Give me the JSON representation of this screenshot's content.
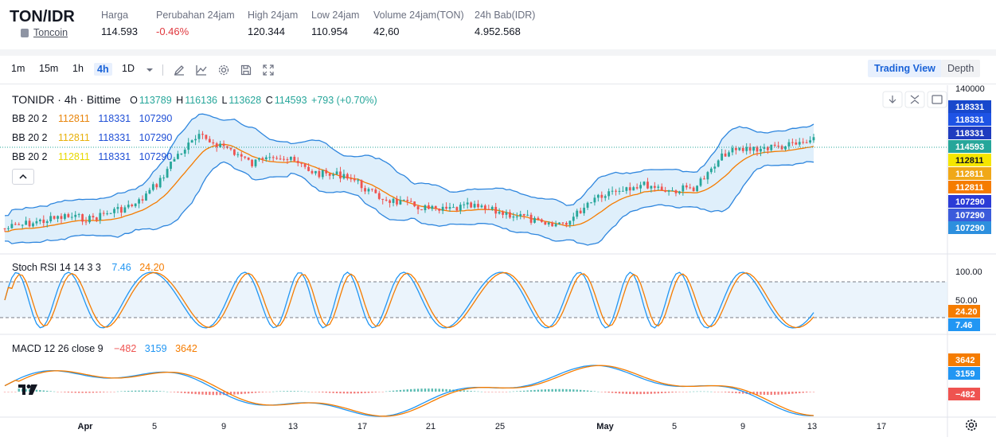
{
  "header": {
    "pair": "TON/IDR",
    "coin_name": "Toncoin",
    "stats": [
      {
        "label": "Harga",
        "value": "114.593",
        "negative": false
      },
      {
        "label": "Perubahan 24jam",
        "value": "-0.46%",
        "negative": true
      },
      {
        "label": "High 24jam",
        "value": "120.344",
        "negative": false
      },
      {
        "label": "Low 24jam",
        "value": "110.954",
        "negative": false
      },
      {
        "label": "Volume 24jam(TON)",
        "value": "42,60",
        "negative": false
      },
      {
        "label": "24h Bab(IDR)",
        "value": "4.952.568",
        "negative": false
      }
    ]
  },
  "toolbar": {
    "timeframes": [
      "1m",
      "15m",
      "1h",
      "4h",
      "1D"
    ],
    "active_timeframe": "4h",
    "icons": [
      "chevron-down-icon",
      "pencil-icon",
      "indicator-icon",
      "gear-icon",
      "save-icon",
      "fullscreen-icon"
    ],
    "view_trading": "Trading View",
    "view_depth": "Depth"
  },
  "chart": {
    "title": "TONIDR · 4h · Bittime",
    "ohlc": {
      "o_label": "O",
      "o": "113789",
      "h_label": "H",
      "h": "116136",
      "l_label": "L",
      "l": "113628",
      "c_label": "C",
      "c": "114593",
      "change": "+793 (+0.70%)"
    },
    "bb_legends": [
      {
        "name": "BB 20 2",
        "basis": "112811",
        "upper": "118331",
        "lower": "107290",
        "basis_color": "#e8850c"
      },
      {
        "name": "BB 20 2",
        "basis": "112811",
        "upper": "118331",
        "lower": "107290",
        "basis_color": "#e8b10c"
      },
      {
        "name": "BB 20 2",
        "basis": "112811",
        "upper": "118331",
        "lower": "107290",
        "basis_color": "#f5e000"
      }
    ],
    "price_axis": {
      "top_tick": "140000",
      "labels": [
        {
          "text": "118331",
          "color": "#1848cc"
        },
        {
          "text": "118331",
          "color": "#1e53e5"
        },
        {
          "text": "118331",
          "color": "#1f3cbf"
        },
        {
          "text": "114593",
          "color": "#26a69a"
        },
        {
          "text": "112811",
          "color": "#f5e600"
        },
        {
          "text": "112811",
          "color": "#f0a818"
        },
        {
          "text": "112811",
          "color": "#f57c00"
        },
        {
          "text": "107290",
          "color": "#2a3bd6"
        },
        {
          "text": "107290",
          "color": "#3b5bdb"
        },
        {
          "text": "107290",
          "color": "#2d8fde"
        }
      ]
    },
    "stoch": {
      "name": "Stoch RSI 14 14 3 3",
      "k": "7.46",
      "d": "24.20",
      "axis_top": "100.00",
      "axis_mid": "50.00",
      "axis_bottom": "0.00",
      "k_color": "#2196f3",
      "d_color": "#f57c00"
    },
    "macd": {
      "name": "MACD 12 26 close 9",
      "hist": "−482",
      "macd": "3159",
      "signal": "3642",
      "hist_color": "#ef5350",
      "macd_color": "#2196f3",
      "signal_color": "#f57c00"
    },
    "time_axis": [
      "Apr",
      "5",
      "9",
      "13",
      "17",
      "21",
      "25",
      "May",
      "5",
      "9",
      "13",
      "17"
    ],
    "colors": {
      "up": "#26a69a",
      "down": "#ef5350",
      "band_fill": "#d9ecfa",
      "band_line": "#2e86de",
      "basis": "#f57c00"
    }
  }
}
